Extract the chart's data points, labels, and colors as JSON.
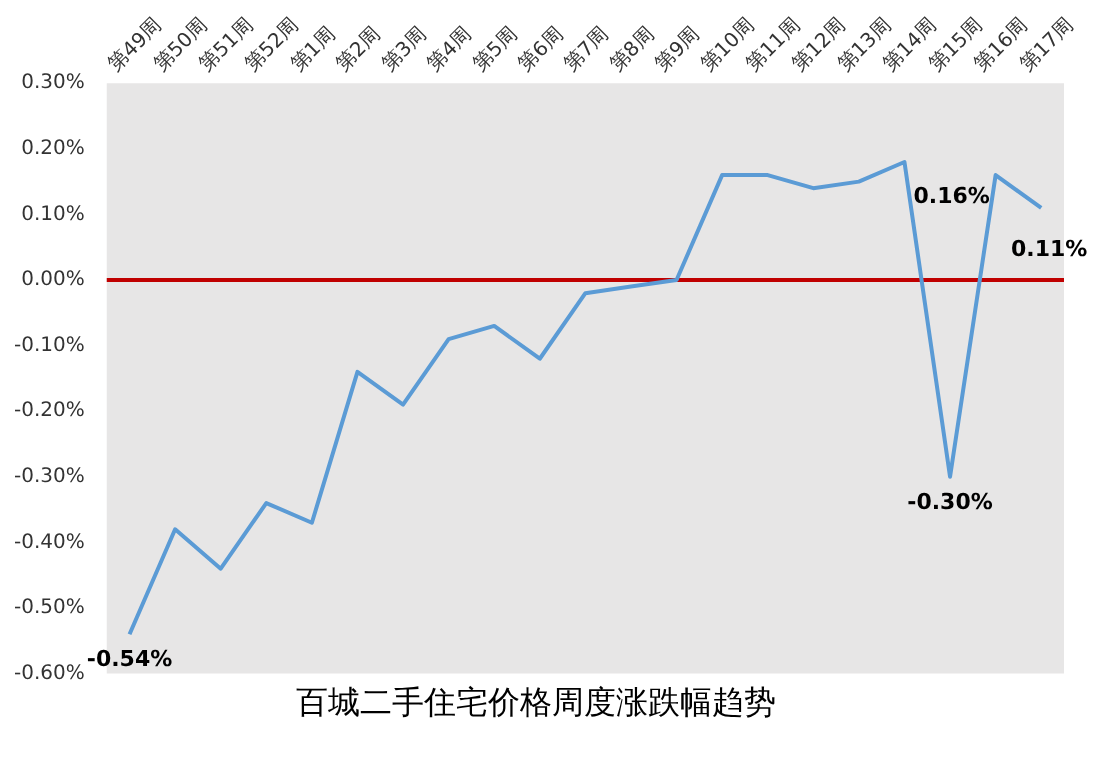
{
  "chart_data": {
    "type": "line",
    "title": "百城二手住宅价格周度涨跌幅趋势",
    "categories": [
      "第49周",
      "第50周",
      "第51周",
      "第52周",
      "第1周",
      "第2周",
      "第3周",
      "第4周",
      "第5周",
      "第6周",
      "第7周",
      "第8周",
      "第9周",
      "第10周",
      "第11周",
      "第12周",
      "第13周",
      "第14周",
      "第15周",
      "第16周",
      "第17周"
    ],
    "series": [
      {
        "color": "#5b9bd5",
        "values": [
          -0.54,
          -0.38,
          -0.44,
          -0.34,
          -0.37,
          -0.14,
          -0.19,
          -0.09,
          -0.07,
          -0.12,
          -0.02,
          -0.01,
          0.0,
          0.16,
          0.16,
          0.14,
          0.15,
          0.18,
          -0.3,
          0.16,
          0.11
        ],
        "value_labels": [
          "-0.54%",
          null,
          null,
          null,
          null,
          null,
          null,
          null,
          null,
          null,
          null,
          null,
          null,
          null,
          null,
          null,
          null,
          null,
          "-0.30%",
          "0.16%",
          "0.11%"
        ]
      }
    ],
    "ylim": [
      -0.6,
      0.3
    ],
    "yticks": [
      {
        "value": -0.6,
        "label": "-0.60%"
      },
      {
        "value": -0.5,
        "label": "-0.50%"
      },
      {
        "value": -0.4,
        "label": "-0.40%"
      },
      {
        "value": -0.3,
        "label": "-0.30%"
      },
      {
        "value": -0.2,
        "label": "-0.20%"
      },
      {
        "value": -0.1,
        "label": "-0.10%"
      },
      {
        "value": 0,
        "label": "0.00%"
      },
      {
        "value": 0.1,
        "label": "0.10%"
      },
      {
        "value": 0.2,
        "label": "0.20%"
      },
      {
        "value": 0.3,
        "label": "0.30%"
      }
    ],
    "ref_lines": [
      {
        "axis": "y",
        "value": 0,
        "color": "#c00000"
      }
    ],
    "grid": false,
    "legend": false,
    "marker": "none"
  }
}
